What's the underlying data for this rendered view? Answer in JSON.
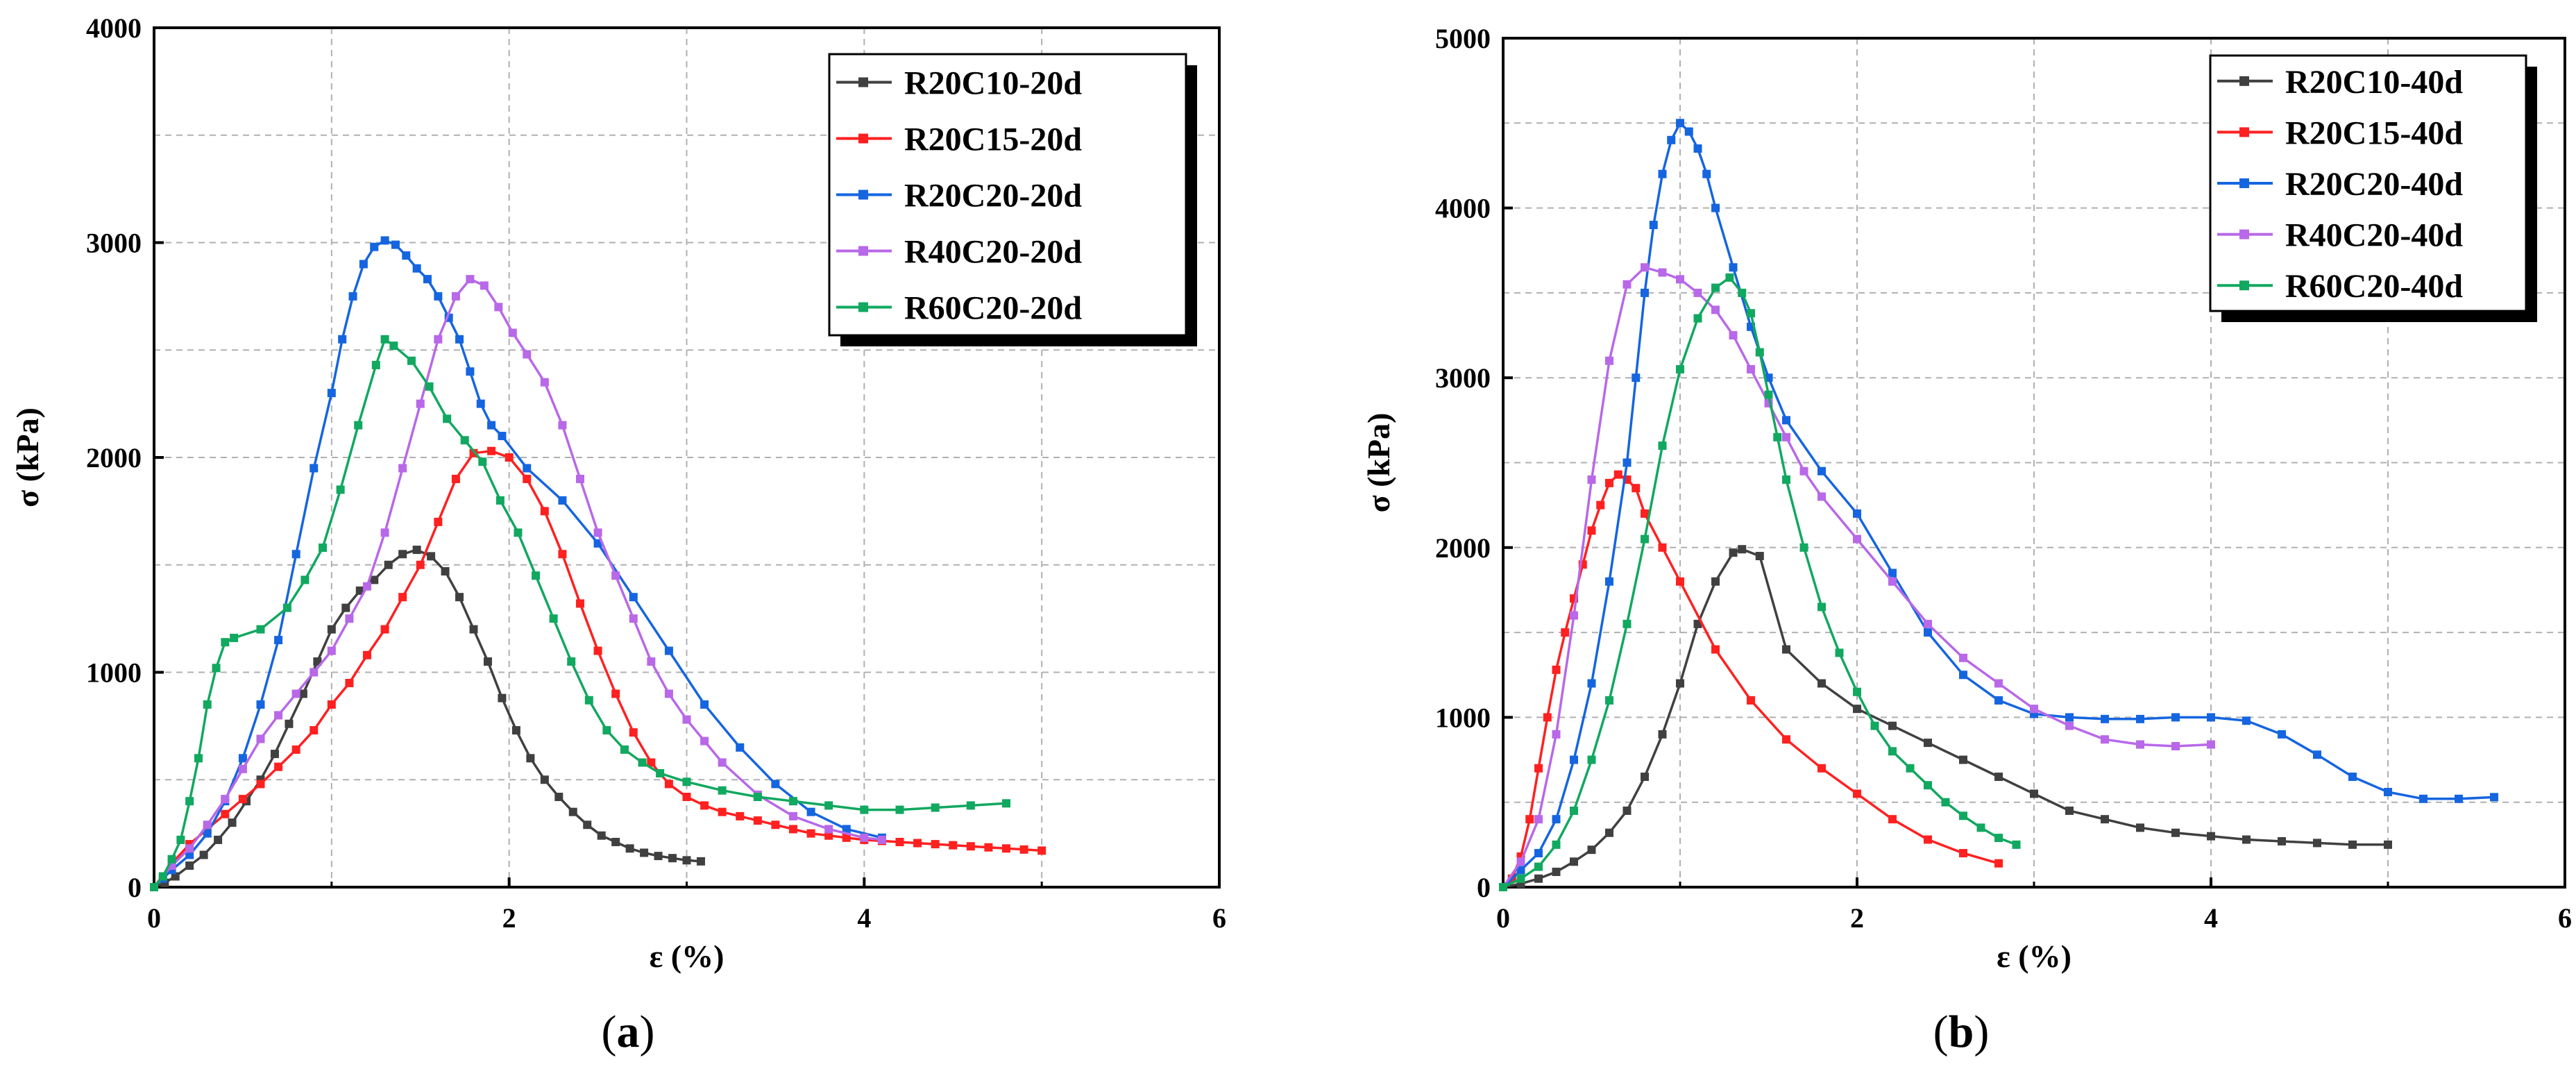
{
  "chart_data": [
    {
      "type": "line",
      "panel": "(a)",
      "panel_letter": "a",
      "xlabel": "ε (%)",
      "ylabel": "σ (kPa)",
      "xlim": [
        0,
        6
      ],
      "ylim": [
        0,
        4000
      ],
      "xticks": [
        0,
        2,
        4,
        6
      ],
      "yticks": [
        0,
        1000,
        2000,
        3000,
        4000
      ],
      "grid": true,
      "legend_position": "top-right",
      "series": [
        {
          "name": "R20C10-20d",
          "color": "#404040",
          "x": [
            0,
            0.06,
            0.12,
            0.2,
            0.28,
            0.36,
            0.44,
            0.52,
            0.6,
            0.68,
            0.76,
            0.84,
            0.92,
            1.0,
            1.08,
            1.16,
            1.24,
            1.32,
            1.4,
            1.48,
            1.56,
            1.64,
            1.72,
            1.8,
            1.88,
            1.96,
            2.04,
            2.12,
            2.2,
            2.28,
            2.36,
            2.44,
            2.52,
            2.6,
            2.68,
            2.76,
            2.84,
            2.92,
            3.0,
            3.08
          ],
          "y": [
            0,
            20,
            50,
            100,
            150,
            220,
            300,
            400,
            500,
            620,
            760,
            900,
            1050,
            1200,
            1300,
            1380,
            1430,
            1500,
            1550,
            1570,
            1540,
            1470,
            1350,
            1200,
            1050,
            880,
            730,
            600,
            500,
            420,
            350,
            290,
            240,
            210,
            180,
            160,
            145,
            135,
            125,
            120
          ]
        },
        {
          "name": "R20C15-20d",
          "color": "#ff2020",
          "x": [
            0,
            0.1,
            0.2,
            0.3,
            0.4,
            0.5,
            0.6,
            0.7,
            0.8,
            0.9,
            1.0,
            1.1,
            1.2,
            1.3,
            1.4,
            1.5,
            1.6,
            1.7,
            1.8,
            1.9,
            2.0,
            2.1,
            2.2,
            2.3,
            2.4,
            2.5,
            2.6,
            2.7,
            2.8,
            2.9,
            3.0,
            3.1,
            3.2,
            3.3,
            3.4,
            3.5,
            3.6,
            3.7,
            3.8,
            3.9,
            4.0,
            4.1,
            4.2,
            4.3,
            4.4,
            4.5,
            4.6,
            4.7,
            4.8,
            4.9,
            5.0
          ],
          "y": [
            0,
            110,
            200,
            270,
            340,
            410,
            480,
            560,
            640,
            730,
            850,
            950,
            1080,
            1200,
            1350,
            1500,
            1700,
            1900,
            2020,
            2030,
            2000,
            1900,
            1750,
            1550,
            1320,
            1100,
            900,
            720,
            580,
            480,
            420,
            380,
            350,
            330,
            310,
            290,
            270,
            250,
            240,
            230,
            220,
            215,
            210,
            205,
            200,
            195,
            190,
            185,
            180,
            175,
            170
          ]
        },
        {
          "name": "R20C20-20d",
          "color": "#1565e0",
          "x": [
            0,
            0.05,
            0.1,
            0.2,
            0.3,
            0.4,
            0.5,
            0.6,
            0.7,
            0.8,
            0.9,
            1.0,
            1.06,
            1.12,
            1.18,
            1.24,
            1.3,
            1.36,
            1.42,
            1.48,
            1.54,
            1.6,
            1.66,
            1.72,
            1.78,
            1.84,
            1.9,
            1.96,
            2.1,
            2.3,
            2.5,
            2.7,
            2.9,
            3.1,
            3.3,
            3.5,
            3.7,
            3.9,
            4.1
          ],
          "y": [
            0,
            40,
            80,
            150,
            250,
            400,
            600,
            850,
            1150,
            1550,
            1950,
            2300,
            2550,
            2750,
            2900,
            2980,
            3010,
            2990,
            2940,
            2880,
            2830,
            2750,
            2650,
            2550,
            2400,
            2250,
            2150,
            2100,
            1950,
            1800,
            1600,
            1350,
            1100,
            850,
            650,
            480,
            350,
            270,
            230
          ]
        },
        {
          "name": "R40C20-20d",
          "color": "#b868e8",
          "x": [
            0,
            0.1,
            0.2,
            0.3,
            0.4,
            0.5,
            0.6,
            0.7,
            0.8,
            0.9,
            1.0,
            1.1,
            1.2,
            1.3,
            1.4,
            1.5,
            1.6,
            1.7,
            1.78,
            1.86,
            1.94,
            2.02,
            2.1,
            2.2,
            2.3,
            2.4,
            2.5,
            2.6,
            2.7,
            2.8,
            2.9,
            3.0,
            3.1,
            3.2,
            3.4,
            3.6,
            3.8,
            4.0,
            4.1
          ],
          "y": [
            0,
            100,
            180,
            290,
            410,
            550,
            690,
            800,
            900,
            1000,
            1100,
            1250,
            1400,
            1650,
            1950,
            2250,
            2550,
            2750,
            2830,
            2800,
            2700,
            2580,
            2480,
            2350,
            2150,
            1900,
            1650,
            1450,
            1250,
            1050,
            900,
            780,
            680,
            580,
            430,
            330,
            270,
            230,
            220
          ]
        },
        {
          "name": "R60C20-20d",
          "color": "#11a860",
          "x": [
            0,
            0.05,
            0.1,
            0.15,
            0.2,
            0.25,
            0.3,
            0.35,
            0.4,
            0.45,
            0.6,
            0.75,
            0.85,
            0.95,
            1.05,
            1.15,
            1.25,
            1.3,
            1.35,
            1.45,
            1.55,
            1.65,
            1.75,
            1.85,
            1.95,
            2.05,
            2.15,
            2.25,
            2.35,
            2.45,
            2.55,
            2.65,
            2.75,
            2.85,
            3.0,
            3.2,
            3.4,
            3.6,
            3.8,
            4.0,
            4.2,
            4.4,
            4.6,
            4.8
          ],
          "y": [
            0,
            50,
            130,
            220,
            400,
            600,
            850,
            1020,
            1140,
            1160,
            1200,
            1300,
            1430,
            1580,
            1850,
            2150,
            2430,
            2550,
            2520,
            2450,
            2330,
            2180,
            2080,
            1980,
            1800,
            1650,
            1450,
            1250,
            1050,
            870,
            730,
            640,
            580,
            530,
            490,
            450,
            420,
            400,
            380,
            360,
            360,
            370,
            380,
            390
          ]
        }
      ]
    },
    {
      "type": "line",
      "panel": "(b)",
      "panel_letter": "b",
      "xlabel": "ε (%)",
      "ylabel": "σ (kPa)",
      "xlim": [
        0,
        6
      ],
      "ylim": [
        0,
        5000
      ],
      "xticks": [
        0,
        2,
        4,
        6
      ],
      "yticks": [
        0,
        1000,
        2000,
        3000,
        4000,
        5000
      ],
      "grid": true,
      "legend_position": "top-right",
      "series": [
        {
          "name": "R20C10-40d",
          "color": "#404040",
          "x": [
            0,
            0.1,
            0.2,
            0.3,
            0.4,
            0.5,
            0.6,
            0.7,
            0.8,
            0.9,
            1.0,
            1.1,
            1.2,
            1.3,
            1.35,
            1.45,
            1.6,
            1.8,
            2.0,
            2.2,
            2.4,
            2.6,
            2.8,
            3.0,
            3.2,
            3.4,
            3.6,
            3.8,
            4.0,
            4.2,
            4.4,
            4.6,
            4.8,
            5.0
          ],
          "y": [
            0,
            20,
            50,
            90,
            150,
            220,
            320,
            450,
            650,
            900,
            1200,
            1550,
            1800,
            1970,
            1990,
            1950,
            1400,
            1200,
            1050,
            950,
            850,
            750,
            650,
            550,
            450,
            400,
            350,
            320,
            300,
            280,
            270,
            260,
            250,
            250
          ]
        },
        {
          "name": "R20C15-40d",
          "color": "#ff2020",
          "x": [
            0,
            0.05,
            0.1,
            0.15,
            0.2,
            0.25,
            0.3,
            0.35,
            0.4,
            0.45,
            0.5,
            0.55,
            0.6,
            0.65,
            0.7,
            0.75,
            0.8,
            0.9,
            1.0,
            1.2,
            1.4,
            1.6,
            1.8,
            2.0,
            2.2,
            2.4,
            2.6,
            2.8
          ],
          "y": [
            0,
            50,
            180,
            400,
            700,
            1000,
            1280,
            1500,
            1700,
            1900,
            2100,
            2250,
            2380,
            2430,
            2400,
            2350,
            2200,
            2000,
            1800,
            1400,
            1100,
            870,
            700,
            550,
            400,
            280,
            200,
            140
          ]
        },
        {
          "name": "R20C20-40d",
          "color": "#1565e0",
          "x": [
            0,
            0.1,
            0.2,
            0.3,
            0.4,
            0.5,
            0.6,
            0.7,
            0.75,
            0.8,
            0.85,
            0.9,
            0.95,
            1.0,
            1.05,
            1.1,
            1.15,
            1.2,
            1.3,
            1.4,
            1.5,
            1.6,
            1.8,
            2.0,
            2.2,
            2.4,
            2.6,
            2.8,
            3.0,
            3.2,
            3.4,
            3.6,
            3.8,
            4.0,
            4.2,
            4.4,
            4.6,
            4.8,
            5.0,
            5.2,
            5.4,
            5.6
          ],
          "y": [
            0,
            100,
            200,
            400,
            750,
            1200,
            1800,
            2500,
            3000,
            3500,
            3900,
            4200,
            4400,
            4500,
            4450,
            4350,
            4200,
            4000,
            3650,
            3300,
            3000,
            2750,
            2450,
            2200,
            1850,
            1500,
            1250,
            1100,
            1020,
            1000,
            990,
            990,
            1000,
            1000,
            980,
            900,
            780,
            650,
            560,
            520,
            520,
            530
          ]
        },
        {
          "name": "R40C20-40d",
          "color": "#b868e8",
          "x": [
            0,
            0.1,
            0.2,
            0.3,
            0.4,
            0.5,
            0.6,
            0.7,
            0.8,
            0.9,
            1.0,
            1.1,
            1.2,
            1.3,
            1.4,
            1.5,
            1.6,
            1.7,
            1.8,
            2.0,
            2.2,
            2.4,
            2.6,
            2.8,
            3.0,
            3.2,
            3.4,
            3.6,
            3.8,
            4.0
          ],
          "y": [
            0,
            150,
            400,
            900,
            1600,
            2400,
            3100,
            3550,
            3650,
            3620,
            3580,
            3500,
            3400,
            3250,
            3050,
            2850,
            2650,
            2450,
            2300,
            2050,
            1800,
            1550,
            1350,
            1200,
            1050,
            950,
            870,
            840,
            830,
            840
          ]
        },
        {
          "name": "R60C20-40d",
          "color": "#11a860",
          "x": [
            0,
            0.1,
            0.2,
            0.3,
            0.4,
            0.5,
            0.6,
            0.7,
            0.8,
            0.9,
            1.0,
            1.1,
            1.2,
            1.28,
            1.35,
            1.4,
            1.45,
            1.5,
            1.55,
            1.6,
            1.7,
            1.8,
            1.9,
            2.0,
            2.1,
            2.2,
            2.3,
            2.4,
            2.5,
            2.6,
            2.7,
            2.8,
            2.9
          ],
          "y": [
            0,
            50,
            120,
            250,
            450,
            750,
            1100,
            1550,
            2050,
            2600,
            3050,
            3350,
            3530,
            3590,
            3500,
            3380,
            3150,
            2900,
            2650,
            2400,
            2000,
            1650,
            1380,
            1150,
            950,
            800,
            700,
            600,
            500,
            420,
            350,
            290,
            250
          ]
        }
      ]
    }
  ]
}
